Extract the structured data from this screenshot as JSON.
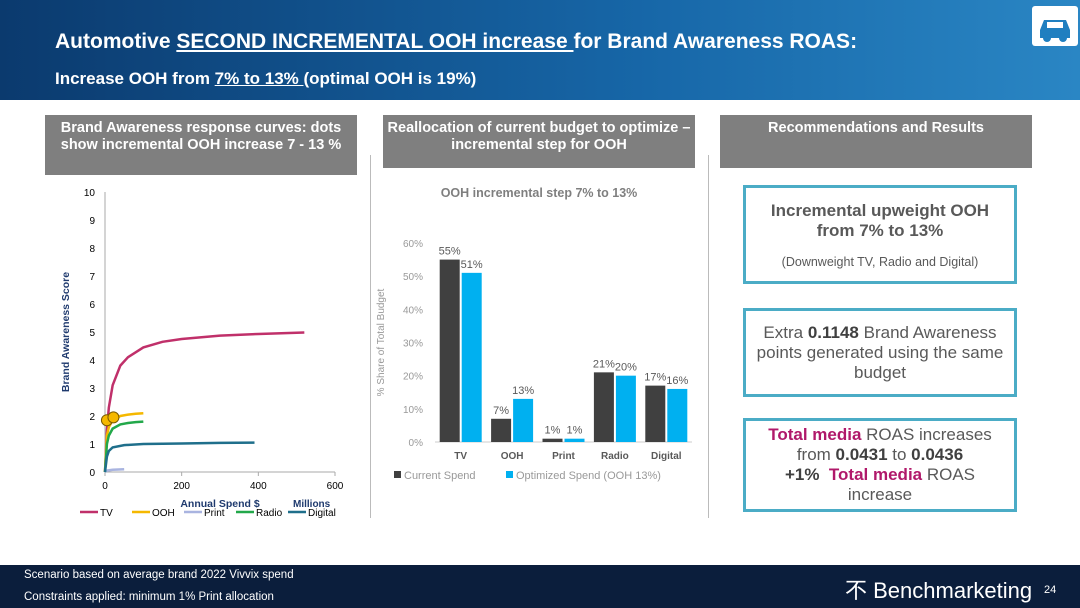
{
  "header": {
    "title": [
      "Automotive ",
      "SECOND INCREMENTAL OOH increase ",
      "for Brand Awareness ROAS:"
    ],
    "subtitle": [
      "Increase OOH from ",
      "7% to 13% ",
      "(optimal OOH is 19%)"
    ]
  },
  "panels": [
    "Brand Awareness response curves: dots show incremental OOH increase 7 - 13 %",
    "Reallocation of current budget to optimize – incremental step for OOH",
    "Recommendations and Results"
  ],
  "chart_data": [
    {
      "type": "line",
      "ylabel": "Brand Awareness Score",
      "xlabel": "Annual Spend $",
      "xunit": "Millions",
      "xlim": [
        0,
        600
      ],
      "xticks": [
        0,
        200,
        400,
        600
      ],
      "ylim": [
        0,
        10
      ],
      "yticks": [
        0,
        1,
        2,
        3,
        4,
        5,
        6,
        7,
        8,
        9,
        10
      ],
      "series": [
        {
          "name": "TV",
          "color": "#c0306a",
          "x": [
            0,
            5,
            10,
            20,
            40,
            60,
            100,
            150,
            200,
            300,
            400,
            520
          ],
          "values": [
            0,
            1.5,
            2.3,
            3.1,
            3.8,
            4.1,
            4.45,
            4.65,
            4.75,
            4.87,
            4.93,
            4.98
          ]
        },
        {
          "name": "OOH",
          "color": "#f5b800",
          "x": [
            0,
            5,
            10,
            20,
            40,
            60,
            80,
            100
          ],
          "values": [
            0,
            1.3,
            1.6,
            1.85,
            2.0,
            2.05,
            2.08,
            2.1
          ]
        },
        {
          "name": "Print",
          "color": "#a9b4e0",
          "x": [
            0,
            5,
            20,
            50
          ],
          "values": [
            0,
            0.05,
            0.08,
            0.1
          ]
        },
        {
          "name": "Radio",
          "color": "#22a84a",
          "x": [
            0,
            5,
            10,
            20,
            40,
            60,
            80,
            100
          ],
          "values": [
            0,
            1.0,
            1.3,
            1.55,
            1.7,
            1.75,
            1.78,
            1.8
          ]
        },
        {
          "name": "Digital",
          "color": "#1f6f8b",
          "x": [
            0,
            5,
            10,
            20,
            50,
            100,
            200,
            300,
            390
          ],
          "values": [
            0,
            0.55,
            0.75,
            0.88,
            0.96,
            1.0,
            1.02,
            1.04,
            1.05
          ]
        }
      ],
      "markers": {
        "color": "#f5b800",
        "x": [
          5,
          22
        ],
        "values": [
          1.85,
          1.95
        ]
      }
    },
    {
      "type": "bar",
      "title": "OOH incremental step 7% to 13%",
      "ylabel": "% Share of Total Budget",
      "categories": [
        "TV",
        "OOH",
        "Print",
        "Radio",
        "Digital"
      ],
      "ylim": [
        0,
        60
      ],
      "yticks": [
        {
          "value": 0,
          "label": "0%"
        },
        {
          "value": 10,
          "label": "10%"
        },
        {
          "value": 20,
          "label": "20%"
        },
        {
          "value": 30,
          "label": "30%"
        },
        {
          "value": 40,
          "label": "40%"
        },
        {
          "value": 50,
          "label": "50%"
        },
        {
          "value": 60,
          "label": "60%"
        }
      ],
      "series": [
        {
          "name": "Current Spend",
          "color": "#404040",
          "values": [
            55,
            7,
            1,
            21,
            17
          ],
          "value_labels": [
            "55%",
            "7%",
            "1%",
            "21%",
            "17%"
          ]
        },
        {
          "name": "Optimized Spend (OOH 13%)",
          "color": "#00b0f0",
          "values": [
            51,
            13,
            1,
            20,
            16
          ],
          "value_labels": [
            "51%",
            "13%",
            "1%",
            "20%",
            "16%"
          ]
        }
      ]
    }
  ],
  "recommendations": [
    {
      "title": "Incremental upweight OOH from 7% to 13%",
      "note": "(Downweight TV, Radio and Digital)"
    },
    {
      "parts": [
        "Extra ",
        "0.1148",
        " Brand Awareness points generated using the same budget"
      ]
    },
    {
      "parts": [
        "Total media",
        " ROAS increases from ",
        "0.0431",
        " to ",
        "0.0436",
        "+1%",
        "Total media",
        " ROAS increase"
      ]
    }
  ],
  "footer": {
    "notes": [
      "Scenario based on average brand 2022  Vivvix spend",
      "Constraints applied: minimum  1% Print allocation"
    ],
    "brand": "Benchmarketing",
    "page": "24"
  }
}
